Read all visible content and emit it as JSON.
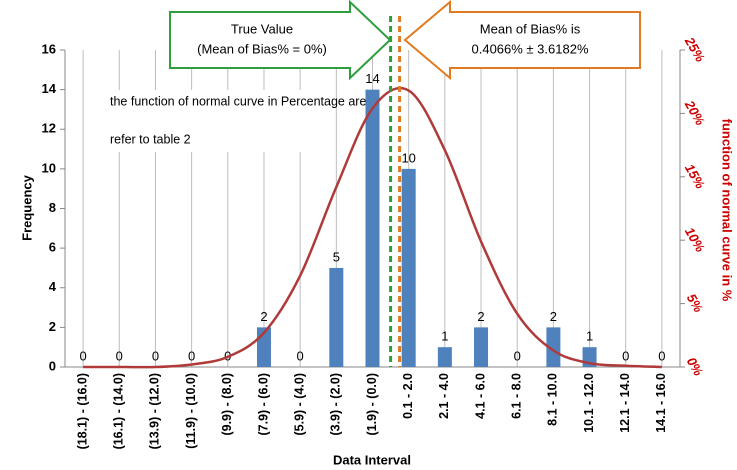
{
  "chart_data": {
    "type": "bar",
    "xlabel": "Data Interval",
    "ylabel": "Frequency",
    "y2label": "function of normal curve in %",
    "categories": [
      "(18.1) - (16.0)",
      "(16.1) - (14.0)",
      "(13.9) - (12.0)",
      "(11.9) - (10.0)",
      "(9.9) - (8.0)",
      "(7.9) - (6.0)",
      "(5.9) - (4.0)",
      "(3.9) - (2.0)",
      "(1.9) - (0.0)",
      "0.1 - 2.0",
      "2.1 - 4.0",
      "4.1 - 6.0",
      "6.1 - 8.0",
      "8.1 - 10.0",
      "10.1 - 12.0",
      "12.1 - 14.0",
      "14.1 - 16.0"
    ],
    "series": [
      {
        "color": "#4f81bd",
        "values": [
          0,
          0,
          0,
          0,
          0,
          2,
          0,
          5,
          14,
          10,
          1,
          2,
          0,
          2,
          1,
          0,
          0
        ]
      },
      {
        "type": "line",
        "axis": "y2",
        "color": "#b03a3a",
        "values": [
          0,
          0,
          0,
          0.2,
          0.8,
          2.7,
          7.2,
          14.2,
          20.4,
          21.8,
          17.1,
          9.9,
          4.2,
          1.3,
          0.3,
          0.1,
          0
        ]
      }
    ],
    "ylim": [
      0,
      16
    ],
    "yticks": [
      0,
      2,
      4,
      6,
      8,
      10,
      12,
      14,
      16
    ],
    "y2lim": [
      0,
      25
    ],
    "y2ticks": [
      {
        "value": 0,
        "label": "0%"
      },
      {
        "value": 5,
        "label": "5%"
      },
      {
        "value": 10,
        "label": "10%"
      },
      {
        "value": 15,
        "label": "15%"
      },
      {
        "value": 20,
        "label": "20%"
      },
      {
        "value": 25,
        "label": "25%"
      }
    ],
    "annotations": {
      "true_value": [
        "True Value",
        "(Mean of Bias% = 0%)"
      ],
      "mean": [
        "Mean of Bias% is",
        "0.4066% ± 3.6182%"
      ],
      "note": [
        "the function of normal curve in Percentage are",
        "refer to table 2"
      ]
    }
  }
}
